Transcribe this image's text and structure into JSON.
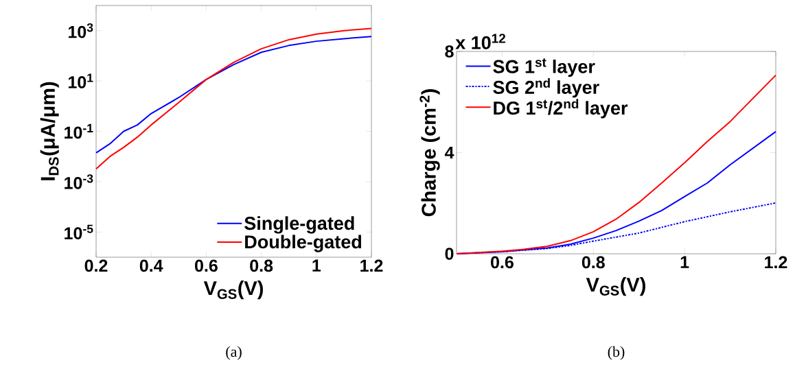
{
  "chart_data": [
    {
      "type": "line",
      "xlabel": "V$_{GS}$(V)",
      "ylabel": "I$_{DS}$(μA/μm)",
      "log": "y",
      "legend": "bottom right",
      "x": [
        0.2,
        0.25,
        0.3,
        0.35,
        0.4,
        0.5,
        0.6,
        0.7,
        0.8,
        0.9,
        1.0,
        1.1,
        1.2
      ],
      "xlim": [
        0.2,
        1.2
      ],
      "xticks": [
        0.2,
        0.4,
        0.6,
        0.8,
        1,
        1.2
      ],
      "ylim": [
        1e-06,
        10000
      ],
      "yticks": [
        {
          "value": 1e-05,
          "label": "10$^{-5}$"
        },
        {
          "value": 0.001,
          "label": "10$^{-3}$"
        },
        {
          "value": 0.1,
          "label": "10$^{-1}$"
        },
        {
          "value": 10,
          "label": "10$^{1}$"
        },
        {
          "value": 1000,
          "label": "10$^{3}$"
        }
      ],
      "series": [
        {
          "name": "Single-gated",
          "color": "#0000ff",
          "values": [
            0.014,
            0.032,
            0.1,
            0.18,
            0.51,
            2.2,
            11.5,
            45,
            138,
            257,
            380,
            479,
            589
          ]
        },
        {
          "name": "Double-gated",
          "color": "#ff0000",
          "values": [
            0.0032,
            0.01,
            0.023,
            0.059,
            0.18,
            1.4,
            11.5,
            55,
            191,
            437,
            724,
            1000,
            1230
          ]
        }
      ],
      "annotations": [
        "(a)"
      ]
    },
    {
      "type": "line",
      "xlabel": "V$_{GS}$(V)",
      "ylabel": "Charge (cm$^{-2}$)",
      "legend": "top left",
      "xlim": [
        0.5,
        1.2
      ],
      "xticks": [
        0.6,
        0.8,
        1,
        1.2
      ],
      "ylim": [
        0,
        8
      ],
      "yticks": [
        0,
        4,
        8
      ],
      "series": [
        {
          "name": "SG 1$^{st}$ layer",
          "color": "#0000ff",
          "line_style": "solid",
          "x": [
            0.5,
            0.6,
            0.7,
            0.75,
            0.8,
            0.85,
            0.9,
            0.95,
            1.0,
            1.05,
            1.1,
            1.2
          ],
          "values": [
            0,
            0.08,
            0.23,
            0.38,
            0.62,
            0.92,
            1.29,
            1.71,
            2.26,
            2.8,
            3.52,
            4.83
          ]
        },
        {
          "name": "SG 2$^{nd}$ layer",
          "color": "#0000ff",
          "line_style": "dashdot",
          "x": [
            0.5,
            0.6,
            0.7,
            0.75,
            0.8,
            0.9,
            1.0,
            1.1,
            1.2
          ],
          "values": [
            0,
            0.08,
            0.21,
            0.33,
            0.5,
            0.82,
            1.27,
            1.66,
            2.01
          ]
        },
        {
          "name": "DG 1$^{st}$/2$^{nd}$ layer",
          "color": "#ff0000",
          "line_style": "solid",
          "x": [
            0.5,
            0.6,
            0.65,
            0.7,
            0.75,
            0.8,
            0.85,
            0.9,
            0.95,
            1.0,
            1.05,
            1.1,
            1.2
          ],
          "values": [
            0,
            0.1,
            0.18,
            0.3,
            0.52,
            0.87,
            1.37,
            2.03,
            2.8,
            3.6,
            4.44,
            5.23,
            7.06
          ]
        }
      ],
      "annotations": [
        "x 10$^{12}$",
        "(b)"
      ]
    }
  ]
}
